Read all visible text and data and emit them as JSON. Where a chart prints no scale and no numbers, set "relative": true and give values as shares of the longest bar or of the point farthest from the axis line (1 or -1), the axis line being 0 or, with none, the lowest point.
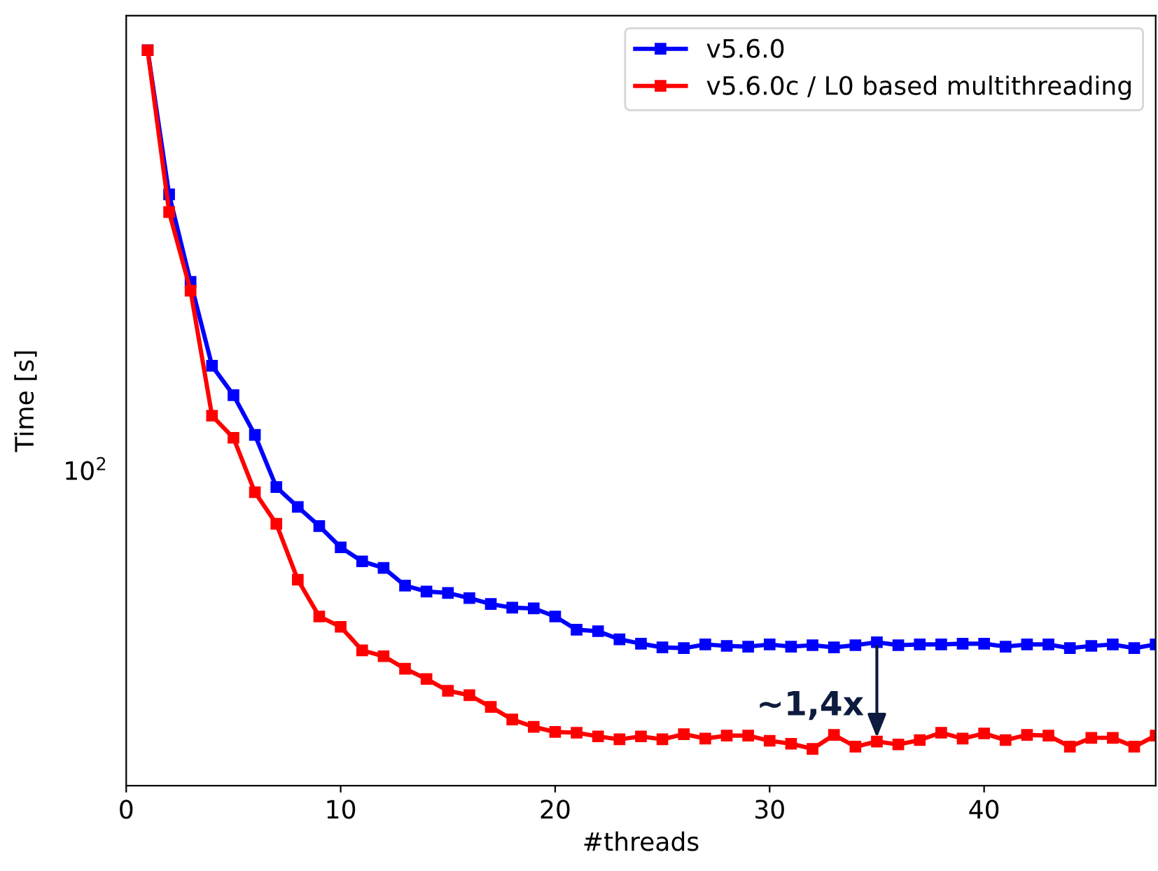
{
  "chart_data": {
    "type": "line",
    "xlabel": "#threads",
    "ylabel": "Time [s]",
    "x": [
      1,
      2,
      3,
      4,
      5,
      6,
      7,
      8,
      9,
      10,
      11,
      12,
      13,
      14,
      15,
      16,
      17,
      18,
      19,
      20,
      21,
      22,
      23,
      24,
      25,
      26,
      27,
      28,
      29,
      30,
      31,
      32,
      33,
      34,
      35,
      36,
      37,
      38,
      39,
      40,
      41,
      42,
      43,
      44,
      45,
      46,
      47,
      48
    ],
    "series": [
      {
        "name": "v5.6.0",
        "color": "#0000ff",
        "values": [
          1,
          0.804,
          0.685,
          0.571,
          0.531,
          0.477,
          0.406,
          0.379,
          0.353,
          0.324,
          0.305,
          0.296,
          0.272,
          0.264,
          0.262,
          0.255,
          0.247,
          0.242,
          0.241,
          0.23,
          0.212,
          0.21,
          0.199,
          0.193,
          0.188,
          0.187,
          0.192,
          0.19,
          0.189,
          0.192,
          0.189,
          0.191,
          0.188,
          0.191,
          0.195,
          0.191,
          0.192,
          0.192,
          0.193,
          0.193,
          0.189,
          0.192,
          0.192,
          0.187,
          0.19,
          0.192,
          0.187,
          0.192
        ]
      },
      {
        "name": "v5.6.0c / L0 based multithreading",
        "color": "#ff0000",
        "values": [
          1,
          0.78,
          0.673,
          0.503,
          0.473,
          0.399,
          0.356,
          0.28,
          0.23,
          0.216,
          0.184,
          0.176,
          0.159,
          0.145,
          0.129,
          0.123,
          0.107,
          0.09,
          0.08,
          0.073,
          0.072,
          0.067,
          0.063,
          0.067,
          0.063,
          0.07,
          0.064,
          0.068,
          0.068,
          0.061,
          0.057,
          0.05,
          0.069,
          0.053,
          0.06,
          0.056,
          0.062,
          0.072,
          0.064,
          0.071,
          0.062,
          0.069,
          0.068,
          0.053,
          0.065,
          0.065,
          0.053,
          0.068
        ]
      }
    ],
    "relative": true,
    "xlim": [
      0,
      48
    ],
    "xticks": [
      0,
      10,
      20,
      30,
      40
    ],
    "marker": "square",
    "line_style": "solid",
    "grid": false,
    "legend": "top right",
    "annotations": [
      {
        "text": "~1,4x",
        "x": 35,
        "y": 0.06
      },
      "10$^{2}$"
    ]
  }
}
